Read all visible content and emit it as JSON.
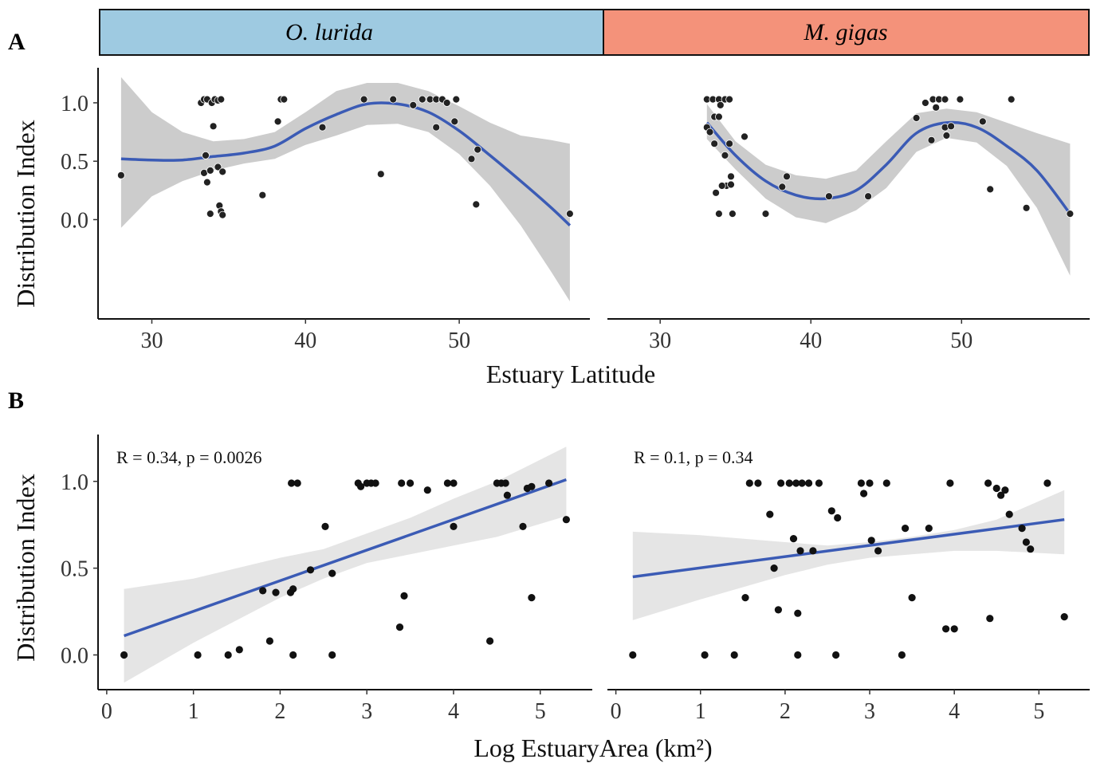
{
  "figure": {
    "panel_a_letter": "A",
    "panel_b_letter": "B",
    "strip_left": "O. lurida",
    "strip_right": "M. gigas",
    "colors": {
      "strip_left": "#9ecae1",
      "strip_right": "#f4927a",
      "fit_line": "#3b5bb5",
      "ribbon_a": "#cccccc",
      "ribbon_b": "#e5e5e5",
      "points": "#111111"
    }
  },
  "chart_data": [
    {
      "type": "scatter",
      "panel": "A-left",
      "facet": "O. lurida",
      "xlabel": "Estuary Latitude",
      "ylabel": "Distribution Index",
      "xlim": [
        26.5,
        58.5
      ],
      "ylim": [
        -0.85,
        1.3
      ],
      "xticks": [
        30,
        40,
        50
      ],
      "yticks": [
        0.0,
        0.5,
        1.0
      ],
      "ytick_labels": [
        "0.0",
        "0.5",
        "1.0"
      ],
      "smooth": "loess",
      "points": [
        [
          28,
          0.38
        ],
        [
          33.2,
          1.0
        ],
        [
          33.4,
          1.03
        ],
        [
          33.6,
          1.03
        ],
        [
          33.9,
          1.0
        ],
        [
          34.1,
          1.03
        ],
        [
          34.3,
          1.02
        ],
        [
          34.5,
          1.03
        ],
        [
          33.5,
          0.55
        ],
        [
          33.4,
          0.4
        ],
        [
          33.8,
          0.42
        ],
        [
          33.6,
          0.32
        ],
        [
          34.0,
          0.8
        ],
        [
          34.3,
          0.45
        ],
        [
          34.6,
          0.41
        ],
        [
          34.4,
          0.12
        ],
        [
          34.5,
          0.07
        ],
        [
          33.8,
          0.05
        ],
        [
          34.6,
          0.04
        ],
        [
          37.2,
          0.21
        ],
        [
          38.2,
          0.84
        ],
        [
          38.4,
          1.03
        ],
        [
          38.6,
          1.03
        ],
        [
          41.1,
          0.79
        ],
        [
          43.8,
          1.03
        ],
        [
          44.9,
          0.39
        ],
        [
          45.7,
          1.03
        ],
        [
          47.0,
          0.98
        ],
        [
          47.6,
          1.03
        ],
        [
          48.1,
          1.03
        ],
        [
          48.5,
          1.03
        ],
        [
          48.9,
          1.03
        ],
        [
          49.2,
          1.0
        ],
        [
          49.8,
          1.03
        ],
        [
          48.5,
          0.79
        ],
        [
          49.7,
          0.84
        ],
        [
          50.8,
          0.52
        ],
        [
          51.1,
          0.13
        ],
        [
          51.2,
          0.6
        ],
        [
          57.2,
          0.05
        ]
      ],
      "fit": [
        [
          28,
          0.52
        ],
        [
          30,
          0.51
        ],
        [
          32,
          0.51
        ],
        [
          34,
          0.54
        ],
        [
          36,
          0.57
        ],
        [
          38,
          0.63
        ],
        [
          40,
          0.78
        ],
        [
          42,
          0.9
        ],
        [
          44,
          0.99
        ],
        [
          46,
          0.99
        ],
        [
          48,
          0.92
        ],
        [
          50,
          0.76
        ],
        [
          52,
          0.55
        ],
        [
          54,
          0.33
        ],
        [
          56,
          0.1
        ],
        [
          57.2,
          -0.05
        ]
      ],
      "band": [
        [
          28,
          1.22,
          -0.07
        ],
        [
          30,
          0.92,
          0.2
        ],
        [
          32,
          0.75,
          0.33
        ],
        [
          34,
          0.67,
          0.42
        ],
        [
          36,
          0.69,
          0.48
        ],
        [
          38,
          0.75,
          0.52
        ],
        [
          40,
          0.92,
          0.64
        ],
        [
          42,
          1.1,
          0.72
        ],
        [
          44,
          1.17,
          0.81
        ],
        [
          46,
          1.17,
          0.82
        ],
        [
          48,
          1.1,
          0.75
        ],
        [
          50,
          0.97,
          0.56
        ],
        [
          52,
          0.83,
          0.29
        ],
        [
          54,
          0.72,
          -0.05
        ],
        [
          56,
          0.68,
          -0.45
        ],
        [
          57.2,
          0.65,
          -0.7
        ]
      ]
    },
    {
      "type": "scatter",
      "panel": "A-right",
      "facet": "M. gigas",
      "xlabel": "Estuary Latitude",
      "ylabel": "Distribution Index",
      "xlim": [
        26.5,
        58.5
      ],
      "ylim": [
        -0.85,
        1.3
      ],
      "xticks": [
        30,
        40,
        50
      ],
      "smooth": "loess",
      "points": [
        [
          33.1,
          1.03
        ],
        [
          33.5,
          1.03
        ],
        [
          33.9,
          1.03
        ],
        [
          34.3,
          1.03
        ],
        [
          34.6,
          1.03
        ],
        [
          34.0,
          0.98
        ],
        [
          33.6,
          0.88
        ],
        [
          33.9,
          0.88
        ],
        [
          33.1,
          0.79
        ],
        [
          33.3,
          0.75
        ],
        [
          33.6,
          0.65
        ],
        [
          34.3,
          0.55
        ],
        [
          34.6,
          0.65
        ],
        [
          34.7,
          0.37
        ],
        [
          34.4,
          0.29
        ],
        [
          34.1,
          0.29
        ],
        [
          33.7,
          0.23
        ],
        [
          34.7,
          0.3
        ],
        [
          35.6,
          0.71
        ],
        [
          33.9,
          0.05
        ],
        [
          34.8,
          0.05
        ],
        [
          37.0,
          0.05
        ],
        [
          38.1,
          0.28
        ],
        [
          38.4,
          0.37
        ],
        [
          41.2,
          0.2
        ],
        [
          43.8,
          0.2
        ],
        [
          47.0,
          0.87
        ],
        [
          47.6,
          1.0
        ],
        [
          48.1,
          1.03
        ],
        [
          48.5,
          1.03
        ],
        [
          48.9,
          1.03
        ],
        [
          49.9,
          1.03
        ],
        [
          48.3,
          0.96
        ],
        [
          48.9,
          0.79
        ],
        [
          49.3,
          0.8
        ],
        [
          48.0,
          0.68
        ],
        [
          49.0,
          0.72
        ],
        [
          51.4,
          0.84
        ],
        [
          51.9,
          0.26
        ],
        [
          53.3,
          1.03
        ],
        [
          54.3,
          0.1
        ],
        [
          57.2,
          0.05
        ]
      ],
      "fit": [
        [
          33.1,
          0.83
        ],
        [
          35,
          0.55
        ],
        [
          37,
          0.33
        ],
        [
          39,
          0.21
        ],
        [
          41,
          0.18
        ],
        [
          43,
          0.25
        ],
        [
          45,
          0.47
        ],
        [
          47,
          0.74
        ],
        [
          49,
          0.83
        ],
        [
          51,
          0.79
        ],
        [
          53,
          0.63
        ],
        [
          55,
          0.42
        ],
        [
          57.2,
          0.05
        ]
      ],
      "band": [
        [
          33.1,
          0.99,
          0.69
        ],
        [
          35,
          0.67,
          0.43
        ],
        [
          37,
          0.47,
          0.18
        ],
        [
          39,
          0.38,
          0.02
        ],
        [
          41,
          0.35,
          -0.03
        ],
        [
          43,
          0.42,
          0.08
        ],
        [
          45,
          0.67,
          0.27
        ],
        [
          47,
          0.91,
          0.58
        ],
        [
          49,
          0.95,
          0.7
        ],
        [
          51,
          0.92,
          0.66
        ],
        [
          53,
          0.83,
          0.46
        ],
        [
          55,
          0.74,
          0.1
        ],
        [
          57.2,
          0.65,
          -0.48
        ]
      ]
    },
    {
      "type": "scatter",
      "panel": "B-left",
      "facet": "O. lurida",
      "annotation": "R = 0.34,   p = 0.0026",
      "xlabel": "Log EstuaryArea (km²)",
      "ylabel": "Distribution Index",
      "xlim": [
        -0.1,
        5.6
      ],
      "ylim": [
        -0.2,
        1.27
      ],
      "xticks": [
        0,
        1,
        2,
        3,
        4,
        5
      ],
      "yticks": [
        0.0,
        0.5,
        1.0
      ],
      "ytick_labels": [
        "0.0",
        "0.5",
        "1.0"
      ],
      "smooth": "linear",
      "points": [
        [
          0.2,
          0.0
        ],
        [
          1.05,
          0.0
        ],
        [
          1.4,
          0.0
        ],
        [
          1.53,
          0.03
        ],
        [
          1.8,
          0.37
        ],
        [
          1.88,
          0.08
        ],
        [
          1.95,
          0.36
        ],
        [
          2.12,
          0.36
        ],
        [
          2.15,
          0.38
        ],
        [
          2.13,
          0.99
        ],
        [
          2.2,
          0.99
        ],
        [
          2.15,
          0.0
        ],
        [
          2.35,
          0.49
        ],
        [
          2.52,
          0.74
        ],
        [
          2.6,
          0.0
        ],
        [
          2.6,
          0.47
        ],
        [
          2.9,
          0.99
        ],
        [
          2.93,
          0.97
        ],
        [
          3.0,
          0.99
        ],
        [
          3.05,
          0.99
        ],
        [
          3.1,
          0.99
        ],
        [
          3.38,
          0.16
        ],
        [
          3.4,
          0.99
        ],
        [
          3.43,
          0.34
        ],
        [
          3.5,
          0.99
        ],
        [
          3.7,
          0.95
        ],
        [
          3.93,
          0.99
        ],
        [
          4.0,
          0.74
        ],
        [
          4.0,
          0.99
        ],
        [
          4.42,
          0.08
        ],
        [
          4.5,
          0.99
        ],
        [
          4.55,
          0.99
        ],
        [
          4.6,
          0.99
        ],
        [
          4.62,
          0.92
        ],
        [
          4.8,
          0.74
        ],
        [
          4.85,
          0.96
        ],
        [
          4.9,
          0.33
        ],
        [
          4.9,
          0.97
        ],
        [
          5.1,
          0.99
        ],
        [
          5.3,
          0.78
        ]
      ],
      "fit": [
        [
          0.2,
          0.11
        ],
        [
          5.3,
          1.01
        ]
      ],
      "band": [
        [
          0.2,
          0.38,
          -0.16
        ],
        [
          1.0,
          0.44,
          0.07
        ],
        [
          2.0,
          0.56,
          0.33
        ],
        [
          2.5,
          0.61,
          0.44
        ],
        [
          3.0,
          0.7,
          0.53
        ],
        [
          3.5,
          0.79,
          0.58
        ],
        [
          4.0,
          0.9,
          0.63
        ],
        [
          4.5,
          1.0,
          0.68
        ],
        [
          5.3,
          1.2,
          0.8
        ]
      ]
    },
    {
      "type": "scatter",
      "panel": "B-right",
      "facet": "M. gigas",
      "annotation": "R = 0.1,   p = 0.34",
      "xlabel": "Log EstuaryArea (km²)",
      "ylabel": "Distribution Index",
      "xlim": [
        -0.1,
        5.6
      ],
      "ylim": [
        -0.2,
        1.27
      ],
      "xticks": [
        0,
        1,
        2,
        3,
        4,
        5
      ],
      "smooth": "linear",
      "points": [
        [
          0.2,
          0.0
        ],
        [
          1.05,
          0.0
        ],
        [
          1.4,
          0.0
        ],
        [
          1.53,
          0.33
        ],
        [
          1.58,
          0.99
        ],
        [
          1.68,
          0.99
        ],
        [
          1.82,
          0.81
        ],
        [
          1.87,
          0.5
        ],
        [
          1.92,
          0.26
        ],
        [
          1.95,
          0.99
        ],
        [
          2.05,
          0.99
        ],
        [
          2.1,
          0.67
        ],
        [
          2.13,
          0.99
        ],
        [
          2.15,
          0.0
        ],
        [
          2.15,
          0.24
        ],
        [
          2.18,
          0.6
        ],
        [
          2.2,
          0.99
        ],
        [
          2.28,
          0.99
        ],
        [
          2.33,
          0.6
        ],
        [
          2.4,
          0.99
        ],
        [
          2.55,
          0.83
        ],
        [
          2.62,
          0.79
        ],
        [
          2.6,
          0.0
        ],
        [
          2.9,
          0.99
        ],
        [
          2.93,
          0.93
        ],
        [
          3.0,
          0.99
        ],
        [
          3.02,
          0.66
        ],
        [
          3.1,
          0.6
        ],
        [
          3.2,
          0.99
        ],
        [
          3.38,
          0.0
        ],
        [
          3.42,
          0.73
        ],
        [
          3.5,
          0.33
        ],
        [
          3.7,
          0.73
        ],
        [
          3.9,
          0.15
        ],
        [
          3.95,
          0.99
        ],
        [
          4.0,
          0.15
        ],
        [
          4.4,
          0.99
        ],
        [
          4.42,
          0.21
        ],
        [
          4.5,
          0.96
        ],
        [
          4.55,
          0.92
        ],
        [
          4.6,
          0.95
        ],
        [
          4.65,
          0.81
        ],
        [
          4.8,
          0.73
        ],
        [
          4.85,
          0.65
        ],
        [
          4.9,
          0.61
        ],
        [
          5.1,
          0.99
        ],
        [
          5.3,
          0.22
        ]
      ],
      "fit": [
        [
          0.2,
          0.45
        ],
        [
          5.3,
          0.78
        ]
      ],
      "band": [
        [
          0.2,
          0.71,
          0.2
        ],
        [
          1.0,
          0.69,
          0.32
        ],
        [
          2.0,
          0.65,
          0.46
        ],
        [
          2.5,
          0.63,
          0.52
        ],
        [
          3.0,
          0.65,
          0.56
        ],
        [
          3.5,
          0.68,
          0.58
        ],
        [
          4.0,
          0.72,
          0.6
        ],
        [
          4.5,
          0.78,
          0.6
        ],
        [
          5.3,
          0.95,
          0.58
        ]
      ]
    }
  ]
}
